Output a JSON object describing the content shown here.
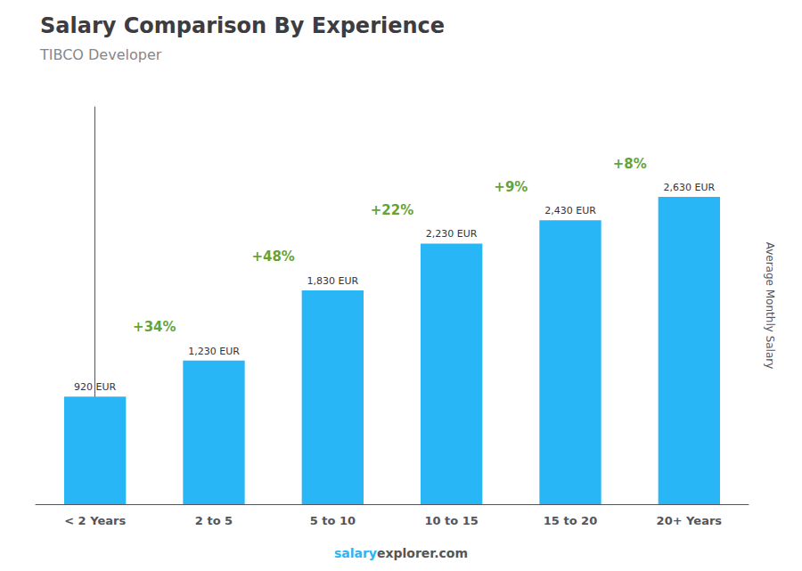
{
  "chart_data": {
    "type": "bar",
    "title": "Salary Comparison By Experience",
    "subtitle": "TIBCO Developer",
    "categories": [
      "< 2 Years",
      "2 to 5",
      "5 to 10",
      "10 to 15",
      "15 to 20",
      "20+ Years"
    ],
    "values": [
      920,
      1230,
      1830,
      2230,
      2430,
      2630
    ],
    "value_labels": [
      "920 EUR",
      "1,230 EUR",
      "1,830 EUR",
      "2,230 EUR",
      "2,430 EUR",
      "2,630 EUR"
    ],
    "data_labels": true,
    "color": "#29B6F6",
    "ylabel": "Average Monthly Salary",
    "ylim": [
      0,
      3400
    ],
    "yticks": [],
    "tick_labels": "x",
    "grid": false,
    "annotations": {
      "changes": [
        "+34%",
        "+48%",
        "+22%",
        "+9%",
        "+8%"
      ],
      "watermark": [
        "salary",
        "explorer.com"
      ]
    }
  }
}
